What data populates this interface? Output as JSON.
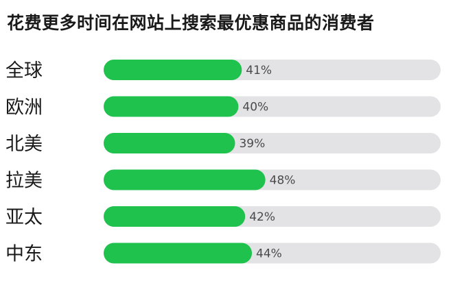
{
  "title": "花费更多时间在网站上搜索最优惠商品的消费者",
  "colors": {
    "bar": "#1ec24c",
    "track": "#e3e3e6",
    "value_text": "#4a4a4a",
    "label_text": "#1a1a1a"
  },
  "chart_data": {
    "type": "bar",
    "orientation": "horizontal",
    "title": "花费更多时间在网站上搜索最优惠商品的消费者",
    "categories": [
      "全球",
      "欧洲",
      "北美",
      "拉美",
      "亚太",
      "中东"
    ],
    "values": [
      41,
      40,
      39,
      48,
      42,
      44
    ],
    "value_labels": [
      "41%",
      "40%",
      "39%",
      "48%",
      "42%",
      "44%"
    ],
    "xlim": [
      0,
      100
    ],
    "unit": "%",
    "grid": false,
    "legend": "none"
  }
}
